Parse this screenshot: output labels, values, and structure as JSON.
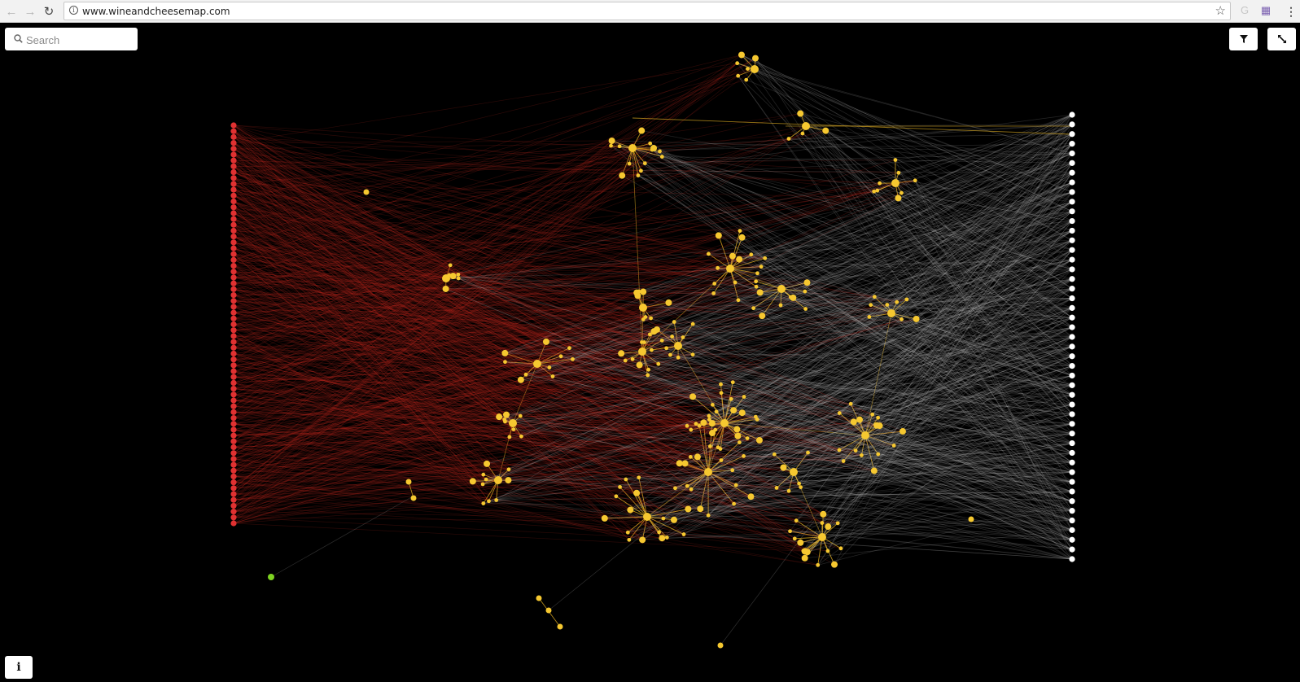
{
  "browser": {
    "url": "www.wineandcheesemap.com",
    "back_icon": "arrow-left-icon",
    "forward_icon": "arrow-right-icon",
    "reload_icon": "reload-icon",
    "secure_icon": "info-circle-icon",
    "bookmark_icon": "star-icon",
    "menu_icon": "kebab-menu-icon"
  },
  "search": {
    "placeholder": "Search",
    "value": "",
    "icon": "search-icon"
  },
  "toolbar": {
    "filter_icon": "filter-icon",
    "fit_icon": "resize-diagonal-icon"
  },
  "info_button": {
    "label": "i",
    "icon": "info-icon"
  },
  "graph": {
    "colors": {
      "background": "#000000",
      "wine_node": "#e03131",
      "wine_edge": "#c0281f",
      "cheese_node": "#ffffff",
      "cheese_edge": "#bdbdbd",
      "cluster_node": "#f6c830",
      "cluster_edge": "#d8a820",
      "selected_node": "#7ed321"
    },
    "wine_node_count": 69,
    "cheese_node_count": 47
  }
}
